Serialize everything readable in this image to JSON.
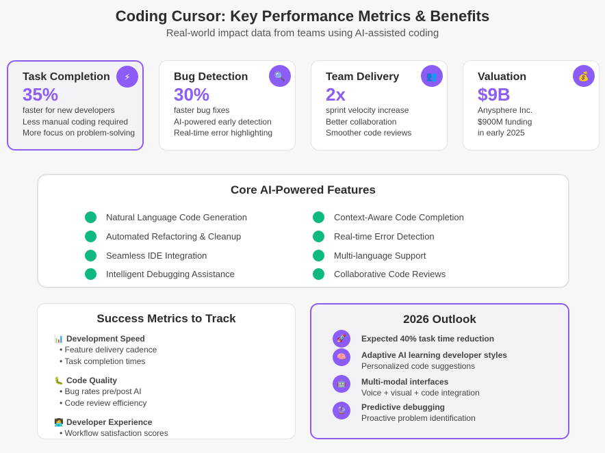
{
  "header": {
    "title": "Coding Cursor: Key Performance Metrics & Benefits",
    "subtitle": "Real-world impact data from teams using AI-assisted coding"
  },
  "cards": [
    {
      "label": "Task Completion",
      "value": "35%",
      "icon": "lightning-icon",
      "lines": [
        "faster for new developers",
        "Less manual coding required",
        "More focus on problem-solving"
      ]
    },
    {
      "label": "Bug Detection",
      "value": "30%",
      "icon": "magnifier-icon",
      "lines": [
        "faster bug fixes",
        "AI-powered early detection",
        "Real-time error highlighting"
      ]
    },
    {
      "label": "Team Delivery",
      "value": "2x",
      "icon": "people-icon",
      "lines": [
        "sprint velocity increase",
        "Better collaboration",
        "Smoother code reviews"
      ]
    },
    {
      "label": "Valuation",
      "value": "$9B",
      "icon": "money-bag-icon",
      "lines": [
        "Anysphere Inc.",
        "$900M funding",
        "in early 2025"
      ]
    }
  ],
  "features": {
    "title": "Core AI-Powered Features",
    "left": [
      "Natural Language Code Generation",
      "Automated Refactoring & Cleanup",
      "Seamless IDE Integration",
      "Intelligent Debugging Assistance"
    ],
    "right": [
      "Context-Aware Code Completion",
      "Real-time Error Detection",
      "Multi-language Support",
      "Collaborative Code Reviews"
    ]
  },
  "metrics": {
    "title": "Success Metrics to Track",
    "groups": [
      {
        "heading": "Development Speed",
        "icon": "bar-chart-icon",
        "items": [
          "Feature delivery cadence",
          "Task completion times"
        ]
      },
      {
        "heading": "Code Quality",
        "icon": "bug-icon",
        "items": [
          "Bug rates pre/post AI",
          "Code review efficiency"
        ]
      },
      {
        "heading": "Developer Experience",
        "icon": "developer-icon",
        "items": [
          "Workflow satisfaction scores"
        ]
      }
    ]
  },
  "outlook": {
    "title": "2026 Outlook",
    "items": [
      {
        "heading": "Expected 40% task time reduction",
        "sub": "",
        "icon": "rocket-icon"
      },
      {
        "heading": "Adaptive AI learning developer styles",
        "sub": "Personalized code suggestions",
        "icon": "brain-icon"
      },
      {
        "heading": "Multi-modal interfaces",
        "sub": "Voice + visual + code integration",
        "icon": "robot-icon"
      },
      {
        "heading": "Predictive debugging",
        "sub": "Proactive problem identification",
        "icon": "crystal-ball-icon"
      }
    ]
  },
  "colors": {
    "accent": "#8b5cf6",
    "feature_dot": "#10b981",
    "text": "#2b2b2b"
  }
}
